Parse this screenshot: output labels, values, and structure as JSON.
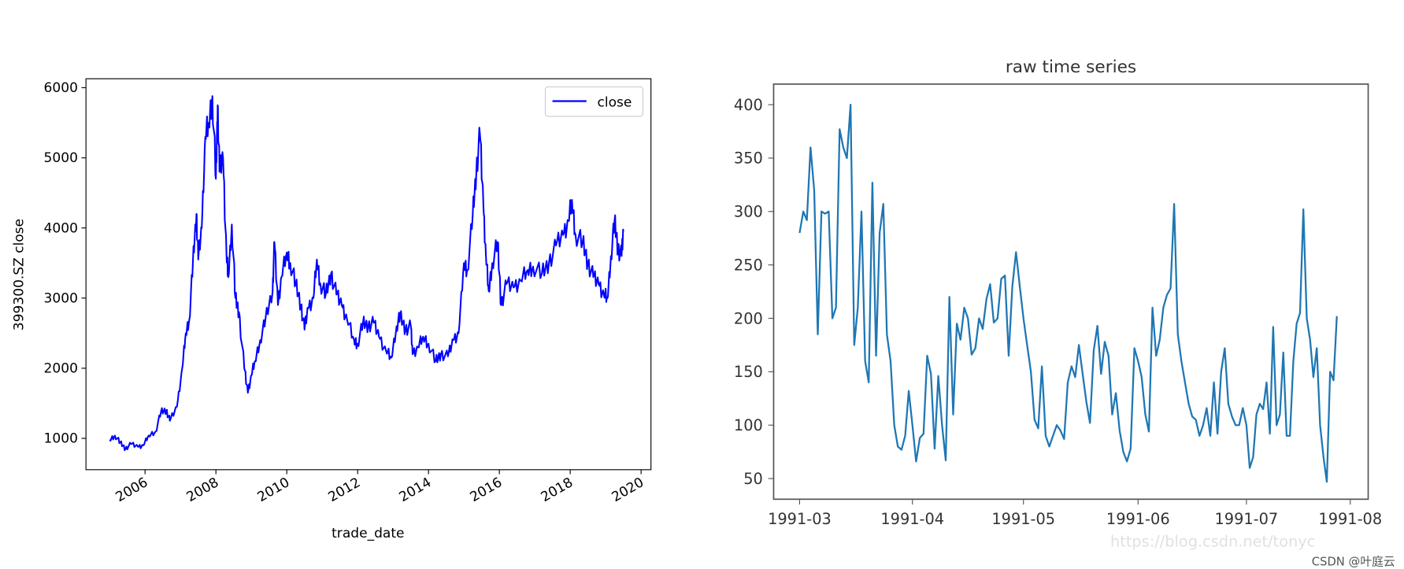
{
  "chart_data": [
    {
      "type": "line",
      "title": "",
      "xlabel": "trade_date",
      "ylabel": "399300.SZ close",
      "xlim": [
        2004.33,
        2020.28
      ],
      "ylim": [
        553,
        6128
      ],
      "xticks": [
        2006,
        2008,
        2010,
        2012,
        2014,
        2016,
        2018,
        2020
      ],
      "xtick_labels": [
        "2006",
        "2008",
        "2010",
        "2012",
        "2014",
        "2016",
        "2018",
        "2020"
      ],
      "yticks": [
        1000,
        2000,
        3000,
        4000,
        5000,
        6000
      ],
      "ytick_labels": [
        "1000",
        "2000",
        "3000",
        "4000",
        "5000",
        "6000"
      ],
      "grid": false,
      "legend": {
        "placement": "top-right",
        "entries": [
          "close"
        ]
      },
      "series": [
        {
          "name": "close",
          "color": "#0000ff",
          "x": [
            2005.0,
            2005.15,
            2005.3,
            2005.45,
            2005.6,
            2005.8,
            2005.95,
            2006.1,
            2006.3,
            2006.45,
            2006.6,
            2006.7,
            2006.9,
            2007.05,
            2007.15,
            2007.25,
            2007.35,
            2007.45,
            2007.5,
            2007.6,
            2007.7,
            2007.8,
            2007.9,
            2008.0,
            2008.05,
            2008.1,
            2008.2,
            2008.3,
            2008.35,
            2008.45,
            2008.55,
            2008.65,
            2008.8,
            2008.9,
            2009.0,
            2009.1,
            2009.25,
            2009.4,
            2009.6,
            2009.65,
            2009.75,
            2009.85,
            2010.0,
            2010.1,
            2010.25,
            2010.4,
            2010.5,
            2010.6,
            2010.75,
            2010.85,
            2010.95,
            2011.1,
            2011.25,
            2011.4,
            2011.55,
            2011.7,
            2011.9,
            2012.0,
            2012.15,
            2012.3,
            2012.45,
            2012.6,
            2012.8,
            2012.95,
            2013.1,
            2013.2,
            2013.35,
            2013.5,
            2013.55,
            2013.7,
            2013.85,
            2014.0,
            2014.2,
            2014.35,
            2014.55,
            2014.7,
            2014.85,
            2015.0,
            2015.1,
            2015.25,
            2015.35,
            2015.45,
            2015.55,
            2015.62,
            2015.7,
            2015.8,
            2015.95,
            2016.05,
            2016.2,
            2016.4,
            2016.6,
            2016.8,
            2016.95,
            2017.2,
            2017.4,
            2017.6,
            2017.8,
            2017.95,
            2018.05,
            2018.15,
            2018.35,
            2018.5,
            2018.65,
            2018.8,
            2018.95,
            2019.05,
            2019.15,
            2019.25,
            2019.35,
            2019.45,
            2019.5
          ],
          "y": [
            980,
            1040,
            940,
            850,
            920,
            880,
            900,
            1040,
            1100,
            1380,
            1400,
            1250,
            1450,
            2000,
            2500,
            2700,
            3500,
            4200,
            3550,
            4000,
            5300,
            5500,
            5880,
            4700,
            5750,
            4800,
            5000,
            3600,
            3300,
            4050,
            3000,
            2800,
            2000,
            1650,
            1900,
            2100,
            2400,
            2700,
            3100,
            3800,
            2900,
            3300,
            3650,
            3500,
            3200,
            2900,
            2550,
            2850,
            3000,
            3550,
            3200,
            3050,
            3350,
            3050,
            2900,
            2700,
            2400,
            2350,
            2650,
            2600,
            2650,
            2450,
            2250,
            2150,
            2600,
            2750,
            2550,
            2600,
            2200,
            2300,
            2450,
            2350,
            2100,
            2200,
            2170,
            2400,
            2500,
            3500,
            3400,
            4200,
            4800,
            5350,
            4300,
            3600,
            3100,
            3500,
            3800,
            2900,
            3200,
            3150,
            3250,
            3400,
            3450,
            3350,
            3500,
            3750,
            3900,
            4100,
            4400,
            3900,
            3800,
            3500,
            3300,
            3200,
            3050,
            3000,
            3600,
            4100,
            3700,
            3600,
            3950
          ]
        }
      ]
    },
    {
      "type": "line",
      "title": "raw time series",
      "xlabel": "",
      "ylabel": "",
      "x_unit": "days since 1991-03-01",
      "xticks": [
        0,
        31,
        61,
        92,
        122,
        153
      ],
      "xtick_labels": [
        "1991-03",
        "1991-04",
        "1991-05",
        "1991-06",
        "1991-07",
        "1991-08"
      ],
      "yticks": [
        50,
        100,
        150,
        200,
        250,
        300,
        350,
        400
      ],
      "ytick_labels": [
        "50",
        "100",
        "150",
        "200",
        "250",
        "300",
        "350",
        "400"
      ],
      "ylim": [
        30.7,
        419
      ],
      "grid": false,
      "series": [
        {
          "name": "raw",
          "color": "#1f77b4",
          "y": [
            280,
            300,
            292,
            360,
            320,
            185,
            300,
            298,
            300,
            200,
            210,
            377,
            360,
            350,
            400,
            175,
            210,
            300,
            160,
            140,
            327,
            165,
            280,
            307,
            185,
            160,
            100,
            80,
            77,
            90,
            132,
            100,
            66,
            88,
            92,
            165,
            148,
            78,
            146,
            100,
            67,
            220,
            110,
            195,
            180,
            210,
            200,
            166,
            172,
            200,
            190,
            218,
            232,
            196,
            200,
            237,
            240,
            165,
            230,
            262,
            230,
            200,
            175,
            150,
            105,
            97,
            155,
            90,
            80,
            90,
            100,
            95,
            87,
            140,
            155,
            145,
            175,
            148,
            122,
            102,
            170,
            193,
            148,
            178,
            165,
            110,
            130,
            95,
            75,
            66,
            78,
            172,
            160,
            145,
            110,
            94,
            210,
            165,
            180,
            210,
            222,
            228,
            307,
            185,
            160,
            140,
            120,
            108,
            105,
            90,
            100,
            116,
            90,
            140,
            92,
            150,
            172,
            120,
            108,
            100,
            100,
            116,
            100,
            60,
            70,
            110,
            120,
            115,
            140,
            92,
            192,
            100,
            110,
            168,
            90,
            90,
            160,
            195,
            205,
            302,
            200,
            180,
            145,
            172,
            100,
            70,
            47,
            150,
            142,
            202
          ]
        }
      ]
    }
  ],
  "watermark": "https://blog.csdn.net/tonyc",
  "credit": "CSDN @叶庭云"
}
